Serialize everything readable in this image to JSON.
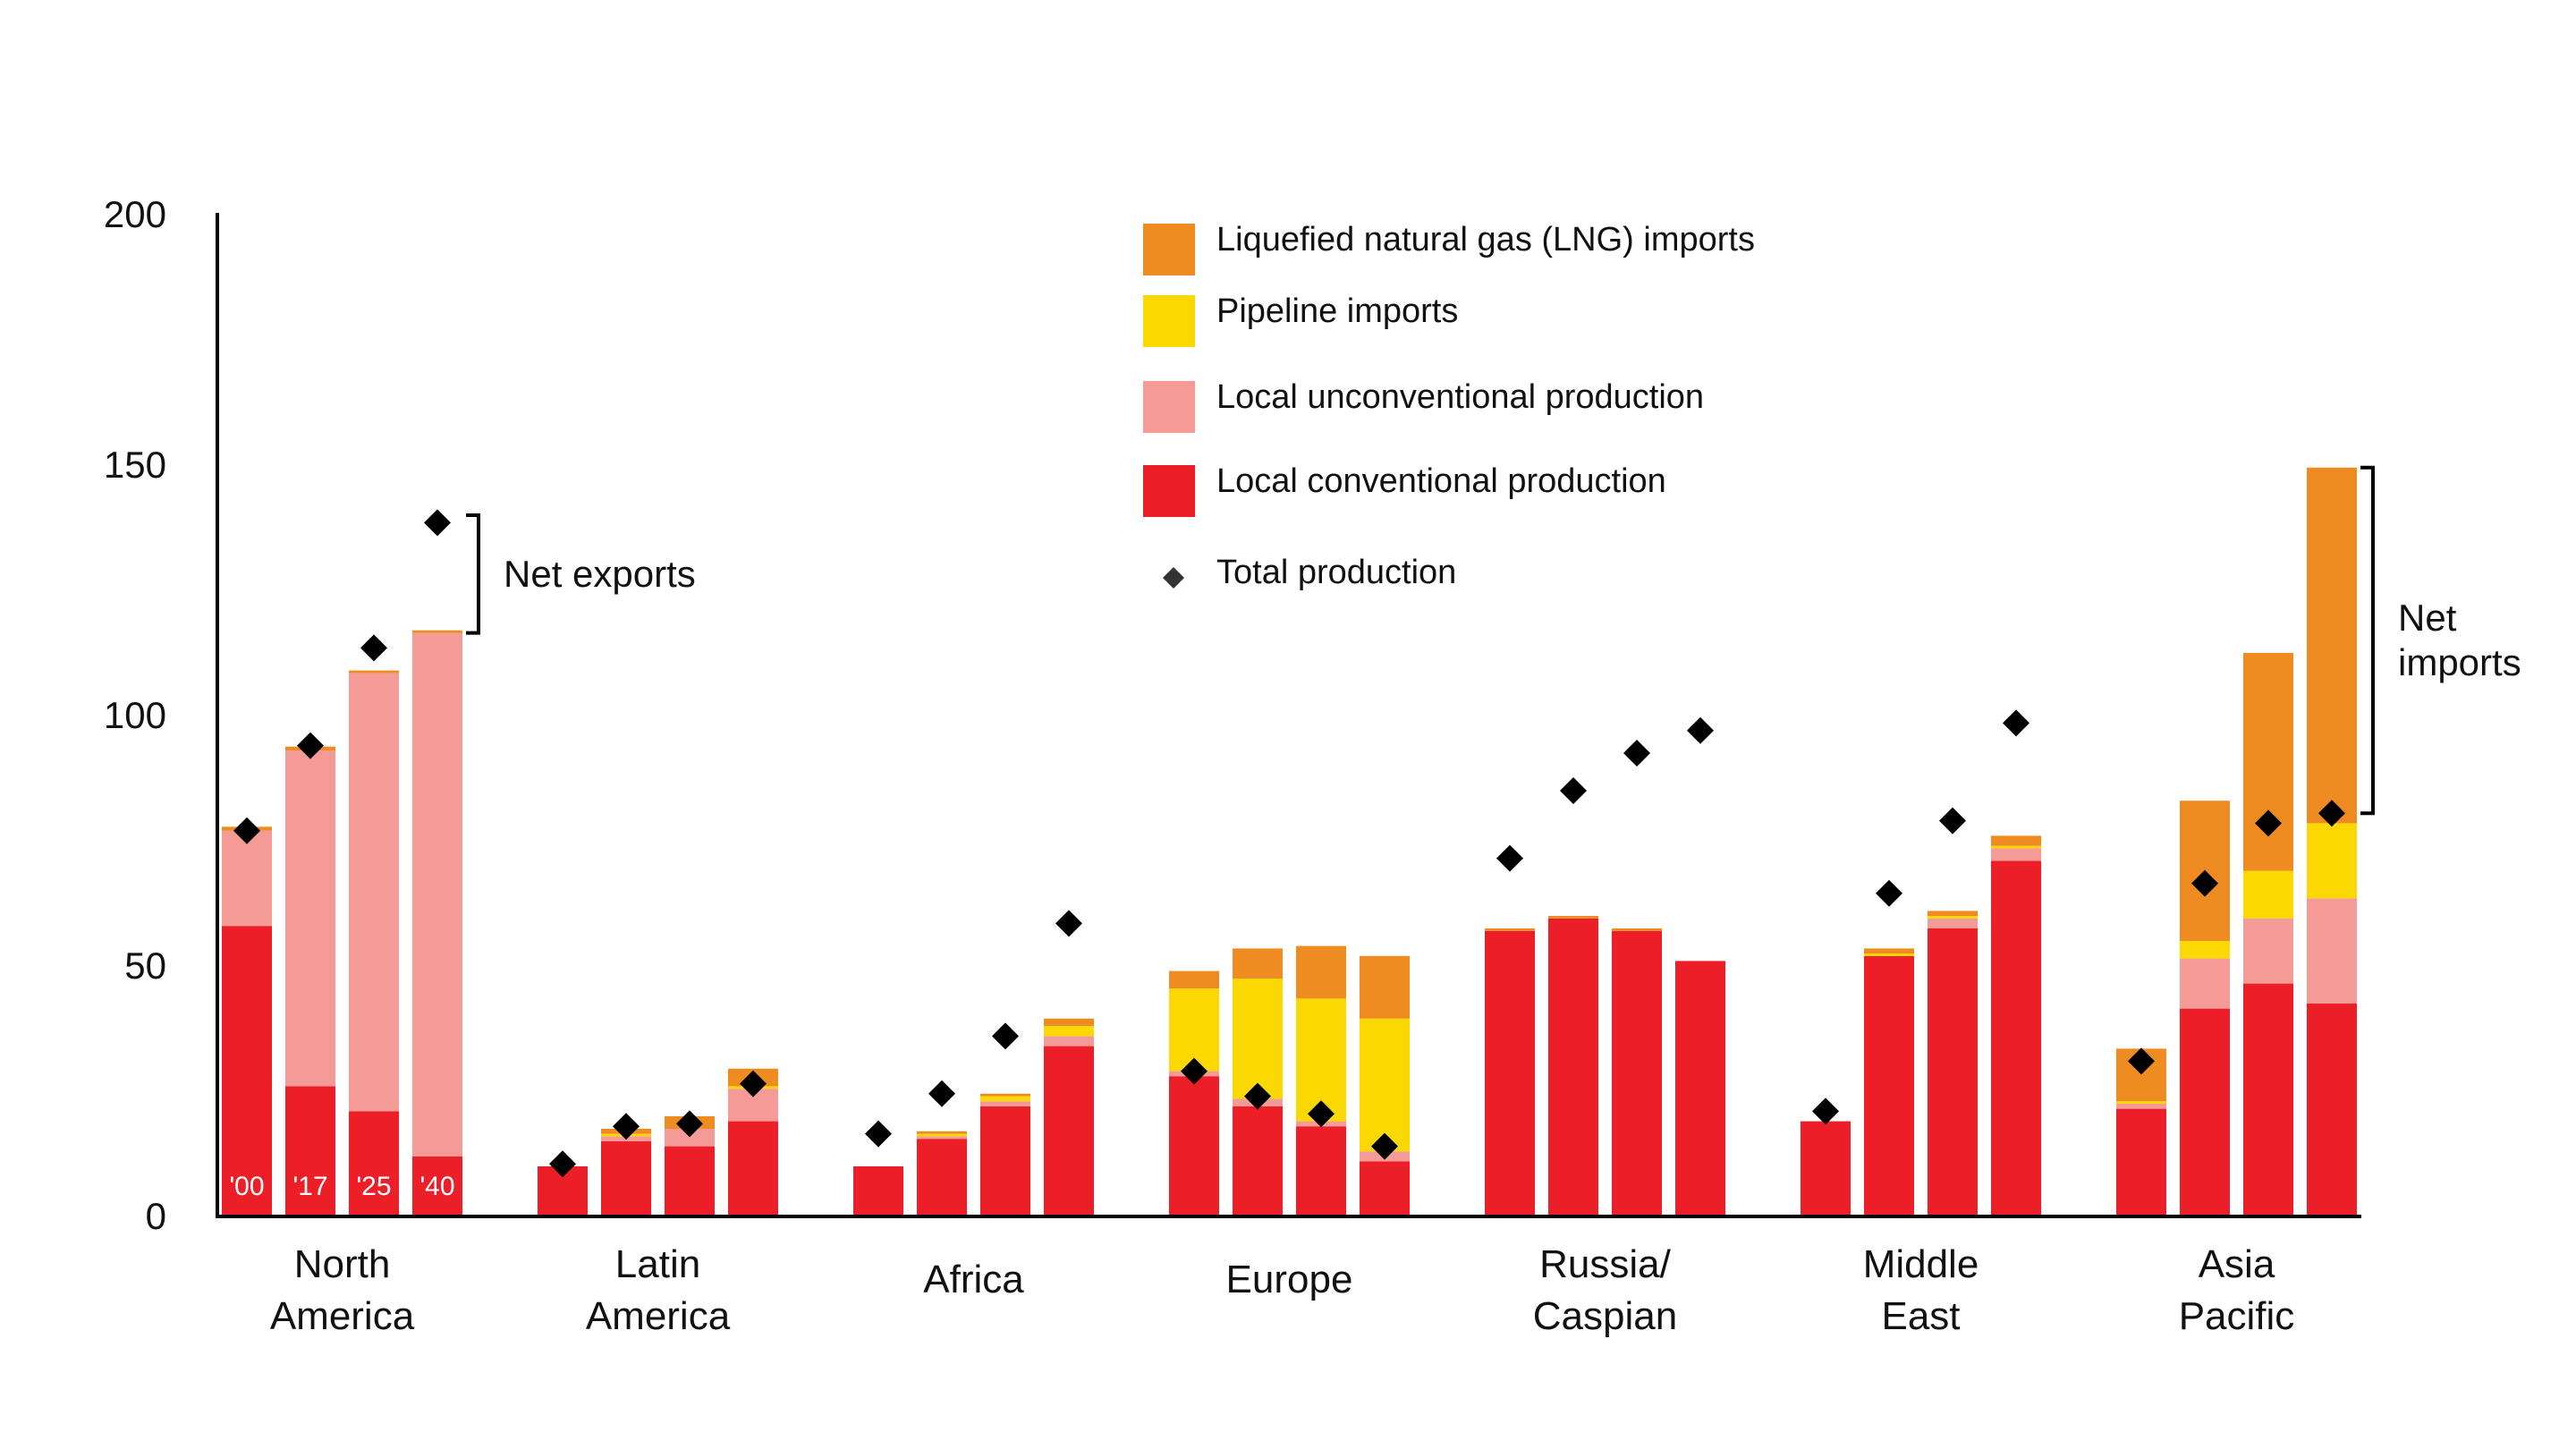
{
  "chart_data": {
    "type": "bar",
    "stacked": true,
    "title": "",
    "xlabel": "",
    "ylabel": "",
    "ylim": [
      0,
      200
    ],
    "yticks": [
      "0",
      "50",
      "100",
      "150",
      "200"
    ],
    "grid": false,
    "legend_position": "top-center",
    "colors": {
      "conventional": "#ec1e28",
      "unconventional": "#f49a97",
      "pipeline": "#fcd803",
      "lng": "#ee8c22",
      "total": "#000000"
    },
    "series_keys": [
      "conventional",
      "unconventional",
      "pipeline",
      "lng"
    ],
    "legend": [
      {
        "key": "lng",
        "label": "Liquefied natural gas (LNG) imports",
        "marker": "square"
      },
      {
        "key": "pipeline",
        "label": "Pipeline imports",
        "marker": "square"
      },
      {
        "key": "unconventional",
        "label": "Local unconventional production",
        "marker": "square"
      },
      {
        "key": "conventional",
        "label": "Local conventional production",
        "marker": "square"
      },
      {
        "key": "total",
        "label": "Total production",
        "marker": "diamond"
      }
    ],
    "year_labels": [
      "'00",
      "'17",
      "'25",
      "'40"
    ],
    "regions": [
      {
        "name": [
          "North",
          "America"
        ],
        "bars": [
          {
            "conventional": 58,
            "unconventional": 19,
            "pipeline": 0,
            "lng": 0.8,
            "total": 77
          },
          {
            "conventional": 26,
            "unconventional": 67,
            "pipeline": 0,
            "lng": 0.8,
            "total": 94
          },
          {
            "conventional": 21,
            "unconventional": 87.5,
            "pipeline": 0,
            "lng": 0.5,
            "total": 113.5
          },
          {
            "conventional": 12,
            "unconventional": 104.5,
            "pipeline": 0,
            "lng": 0.5,
            "total": 138.5
          }
        ]
      },
      {
        "name": [
          "Latin",
          "America"
        ],
        "bars": [
          {
            "conventional": 10,
            "unconventional": 0,
            "pipeline": 0,
            "lng": 0,
            "total": 10.5
          },
          {
            "conventional": 15,
            "unconventional": 1,
            "pipeline": 0.5,
            "lng": 1,
            "total": 18
          },
          {
            "conventional": 14,
            "unconventional": 3.5,
            "pipeline": 0,
            "lng": 2.5,
            "total": 18.5
          },
          {
            "conventional": 19,
            "unconventional": 6.5,
            "pipeline": 0.5,
            "lng": 3.5,
            "total": 26.5
          }
        ]
      },
      {
        "name": [
          "Africa"
        ],
        "bars": [
          {
            "conventional": 10,
            "unconventional": 0,
            "pipeline": 0,
            "lng": 0,
            "total": 16.5
          },
          {
            "conventional": 15.5,
            "unconventional": 0.5,
            "pipeline": 0.5,
            "lng": 0.5,
            "total": 24.5
          },
          {
            "conventional": 22,
            "unconventional": 1,
            "pipeline": 1,
            "lng": 0.5,
            "total": 36
          },
          {
            "conventional": 34,
            "unconventional": 2,
            "pipeline": 2,
            "lng": 1.5,
            "total": 58.5
          }
        ]
      },
      {
        "name": [
          "Europe"
        ],
        "bars": [
          {
            "conventional": 28,
            "unconventional": 1,
            "pipeline": 16.5,
            "lng": 3.5,
            "total": 29
          },
          {
            "conventional": 22,
            "unconventional": 1.5,
            "pipeline": 24,
            "lng": 6,
            "total": 24
          },
          {
            "conventional": 18,
            "unconventional": 1,
            "pipeline": 24.5,
            "lng": 10.5,
            "total": 20.5
          },
          {
            "conventional": 11,
            "unconventional": 2,
            "pipeline": 26.5,
            "lng": 12.5,
            "total": 14
          }
        ]
      },
      {
        "name": [
          "Russia/",
          "Caspian"
        ],
        "bars": [
          {
            "conventional": 57,
            "unconventional": 0,
            "pipeline": 0,
            "lng": 0.5,
            "total": 71.5
          },
          {
            "conventional": 59.5,
            "unconventional": 0,
            "pipeline": 0,
            "lng": 0.5,
            "total": 85
          },
          {
            "conventional": 57,
            "unconventional": 0,
            "pipeline": 0,
            "lng": 0.5,
            "total": 92.5
          },
          {
            "conventional": 51,
            "unconventional": 0,
            "pipeline": 0,
            "lng": 0,
            "total": 97
          }
        ]
      },
      {
        "name": [
          "Middle",
          "East"
        ],
        "bars": [
          {
            "conventional": 19,
            "unconventional": 0,
            "pipeline": 0,
            "lng": 0,
            "total": 21
          },
          {
            "conventional": 52,
            "unconventional": 0,
            "pipeline": 0.5,
            "lng": 1,
            "total": 64.5
          },
          {
            "conventional": 57.5,
            "unconventional": 2,
            "pipeline": 0.5,
            "lng": 1,
            "total": 79
          },
          {
            "conventional": 71,
            "unconventional": 2.5,
            "pipeline": 0.5,
            "lng": 2,
            "total": 98.5
          }
        ]
      },
      {
        "name": [
          "Asia",
          "Pacific"
        ],
        "bars": [
          {
            "conventional": 21.5,
            "unconventional": 1,
            "pipeline": 0.5,
            "lng": 10.5,
            "total": 31
          },
          {
            "conventional": 41.5,
            "unconventional": 10,
            "pipeline": 3.5,
            "lng": 28,
            "total": 66.5
          },
          {
            "conventional": 46.5,
            "unconventional": 13,
            "pipeline": 9.5,
            "lng": 43.5,
            "total": 78.5
          },
          {
            "conventional": 42.5,
            "unconventional": 21,
            "pipeline": 15,
            "lng": 71,
            "total": 80.5
          }
        ]
      }
    ],
    "annotations": [
      {
        "label": [
          "Net exports"
        ],
        "region": 0,
        "bar": 3,
        "from": 116.5,
        "to": 140,
        "side": "right"
      },
      {
        "label": [
          "Net",
          "imports"
        ],
        "region": 6,
        "bar": 3,
        "from": 80.5,
        "to": 149.5,
        "side": "right"
      }
    ]
  }
}
